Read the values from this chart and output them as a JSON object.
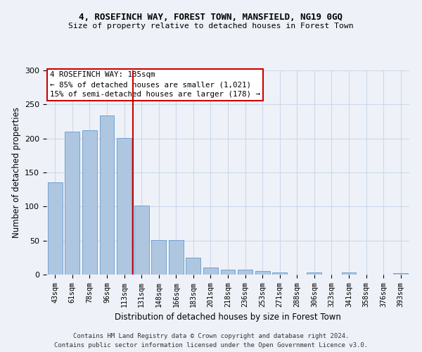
{
  "title1": "4, ROSEFINCH WAY, FOREST TOWN, MANSFIELD, NG19 0GQ",
  "title2": "Size of property relative to detached houses in Forest Town",
  "xlabel": "Distribution of detached houses by size in Forest Town",
  "ylabel": "Number of detached properties",
  "categories": [
    "43sqm",
    "61sqm",
    "78sqm",
    "96sqm",
    "113sqm",
    "131sqm",
    "148sqm",
    "166sqm",
    "183sqm",
    "201sqm",
    "218sqm",
    "236sqm",
    "253sqm",
    "271sqm",
    "288sqm",
    "306sqm",
    "323sqm",
    "341sqm",
    "358sqm",
    "376sqm",
    "393sqm"
  ],
  "values": [
    136,
    210,
    212,
    234,
    201,
    101,
    51,
    51,
    25,
    10,
    7,
    7,
    5,
    3,
    0,
    3,
    0,
    3,
    0,
    0,
    2
  ],
  "bar_color": "#aec6e0",
  "bar_edge_color": "#6699cc",
  "grid_color": "#ccd8ea",
  "annotation_text_line1": "4 ROSEFINCH WAY: 135sqm",
  "annotation_text_line2": "← 85% of detached houses are smaller (1,021)",
  "annotation_text_line3": "15% of semi-detached houses are larger (178) →",
  "vline_color": "#cc0000",
  "annotation_box_color": "#ffffff",
  "annotation_box_edge": "#cc0000",
  "footer1": "Contains HM Land Registry data © Crown copyright and database right 2024.",
  "footer2": "Contains public sector information licensed under the Open Government Licence v3.0.",
  "ylim": [
    0,
    300
  ],
  "yticks": [
    0,
    50,
    100,
    150,
    200,
    250,
    300
  ],
  "background_color": "#eef2f8",
  "vline_index": 5
}
